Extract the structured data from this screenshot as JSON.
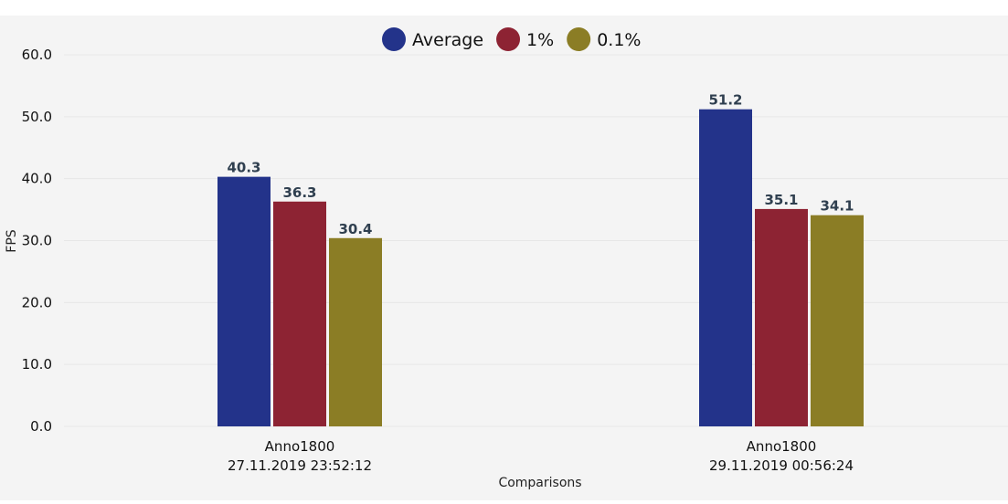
{
  "chart_data": {
    "type": "bar",
    "categories": [
      [
        "Anno1800",
        "27.11.2019 23:52:12"
      ],
      [
        "Anno1800",
        "29.11.2019 00:56:24"
      ]
    ],
    "series": [
      {
        "name": "Average",
        "values": [
          40.3,
          51.2
        ],
        "color": "#23338a"
      },
      {
        "name": "1%",
        "values": [
          36.3,
          35.1
        ],
        "color": "#8d2333"
      },
      {
        "name": "0.1%",
        "values": [
          30.4,
          34.1
        ],
        "color": "#8b7d25"
      }
    ],
    "ylabel": "FPS",
    "xlabel": "Comparisons",
    "ylim": [
      0,
      60
    ],
    "yticks": [
      "0.0",
      "10.0",
      "20.0",
      "30.0",
      "40.0",
      "50.0",
      "60.0"
    ],
    "ytick_values": [
      0,
      10,
      20,
      30,
      40,
      50,
      60
    ],
    "grid": true,
    "legend_position": "top-center",
    "value_format_decimals": 1
  }
}
